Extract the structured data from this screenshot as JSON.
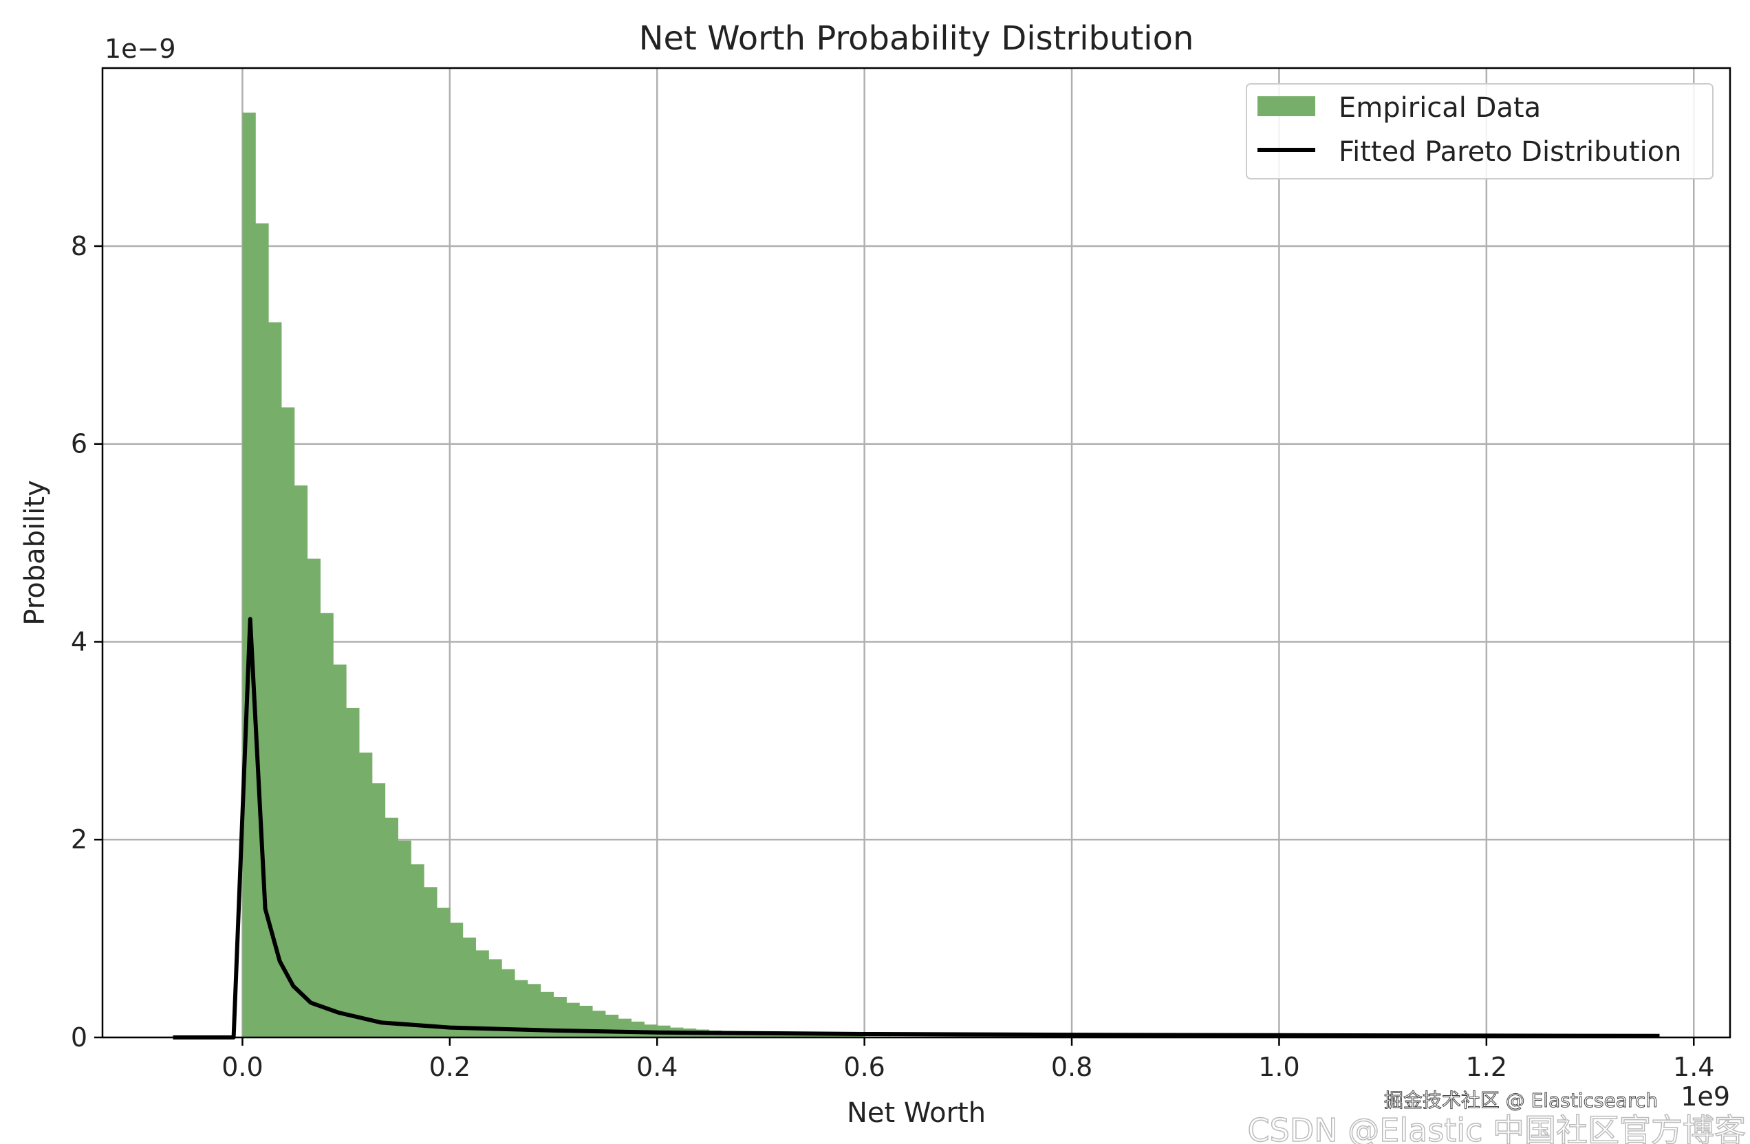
{
  "chart_data": {
    "type": "bar",
    "title": "Net Worth Probability Distribution",
    "xlabel": "Net Worth",
    "ylabel": "Probability",
    "x_offset_label": "1e9",
    "y_offset_label": "1e−9",
    "xlim": [
      -0.135,
      1.435
    ],
    "ylim": [
      0,
      9.8
    ],
    "xticks": [
      "0.0",
      "0.2",
      "0.4",
      "0.6",
      "0.8",
      "1.0",
      "1.2",
      "1.4"
    ],
    "yticks": [
      "0",
      "2",
      "4",
      "6",
      "8"
    ],
    "grid": true,
    "legend_position": "top-right",
    "colors": {
      "histogram": "#77AE6A",
      "line": "#000000",
      "grid": "#b0b0b0"
    },
    "series": [
      {
        "name": "Empirical Data",
        "type": "histogram",
        "bin_start": 0.0,
        "bin_width": 0.0125,
        "values": [
          9.35,
          8.23,
          7.23,
          6.37,
          5.58,
          4.84,
          4.29,
          3.77,
          3.33,
          2.88,
          2.57,
          2.22,
          1.99,
          1.75,
          1.52,
          1.31,
          1.16,
          1.01,
          0.88,
          0.79,
          0.69,
          0.58,
          0.54,
          0.46,
          0.41,
          0.35,
          0.32,
          0.27,
          0.23,
          0.19,
          0.16,
          0.13,
          0.12,
          0.1,
          0.09,
          0.08,
          0.07,
          0.06,
          0.05,
          0.05,
          0.04,
          0.04,
          0.03,
          0.03,
          0.02,
          0.02,
          0.02,
          0.02,
          0.01,
          0.01
        ]
      },
      {
        "name": "Fitted Pareto Distribution",
        "type": "line",
        "x": [
          -0.067,
          -0.0085,
          0.0075,
          0.022,
          0.036,
          0.049,
          0.066,
          0.093,
          0.134,
          0.2,
          0.3,
          0.4,
          0.6,
          0.8,
          1.0,
          1.2,
          1.367
        ],
        "y": [
          0,
          0,
          4.23,
          1.3,
          0.77,
          0.52,
          0.35,
          0.25,
          0.15,
          0.1,
          0.07,
          0.05,
          0.035,
          0.027,
          0.022,
          0.018,
          0.015
        ]
      }
    ]
  },
  "watermarks": [
    "CSDN @Elastic 中国社区官方博客",
    "掘金技术社区 @ Elasticsearch"
  ]
}
